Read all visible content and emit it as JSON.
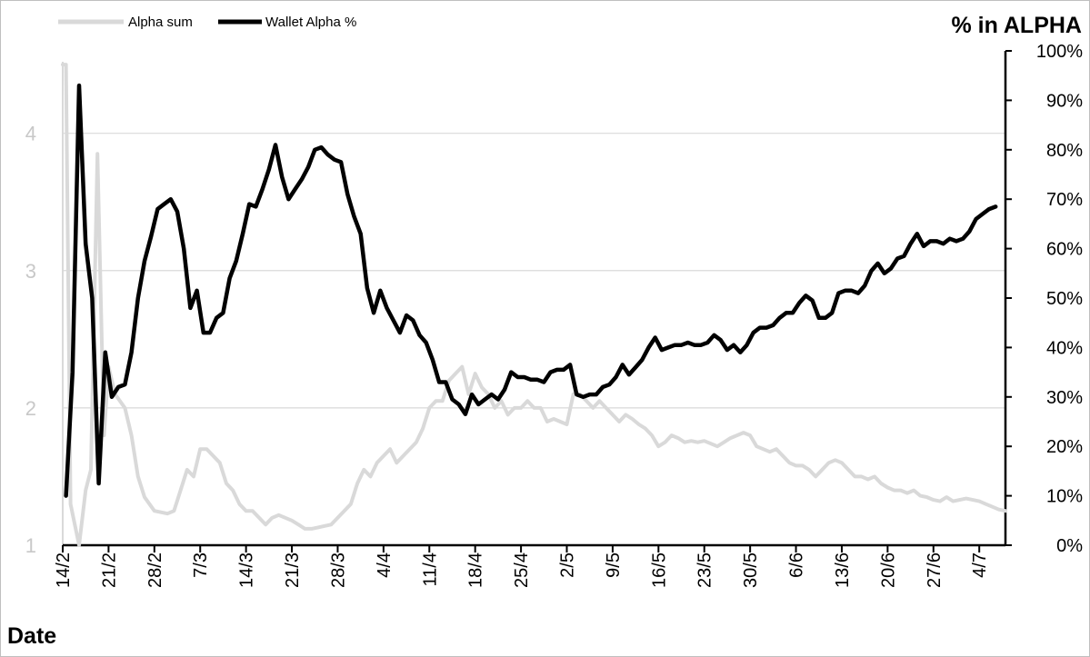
{
  "chart_data": {
    "type": "line",
    "x_axis": {
      "title": "Date",
      "tick_labels": [
        "14/2",
        "21/2",
        "28/2",
        "7/3",
        "14/3",
        "21/3",
        "28/3",
        "4/4",
        "11/4",
        "18/4",
        "25/4",
        "2/5",
        "9/5",
        "16/5",
        "23/5",
        "30/5",
        "6/6",
        "13/6",
        "20/6",
        "27/6",
        "4/7"
      ]
    },
    "y_left": {
      "range": [
        1,
        4.6
      ],
      "ticks": [
        "1",
        "2",
        "3",
        "4"
      ],
      "title": ""
    },
    "y_right": {
      "range": [
        0,
        100
      ],
      "ticks": [
        "0%",
        "10%",
        "20%",
        "30%",
        "40%",
        "50%",
        "60%",
        "70%",
        "80%",
        "90%",
        "100%"
      ],
      "title": "% in ALPHA"
    },
    "grid": "horizontal",
    "legend_position": "top-left",
    "series": [
      {
        "name": "Alpha sum",
        "axis": "left",
        "color": "#d9d9d9",
        "points": [
          [
            0,
            4.5
          ],
          [
            0.5,
            4.5
          ],
          [
            1.2,
            1.3
          ],
          [
            2.5,
            1.0
          ],
          [
            3.5,
            1.4
          ],
          [
            4.3,
            1.55
          ],
          [
            5.3,
            3.85
          ],
          [
            6.3,
            1.8
          ],
          [
            7,
            2.3
          ],
          [
            8,
            2.1
          ],
          [
            9.5,
            2.0
          ],
          [
            10.5,
            1.8
          ],
          [
            11.5,
            1.5
          ],
          [
            12.5,
            1.35
          ],
          [
            14,
            1.25
          ],
          [
            16,
            1.23
          ],
          [
            17,
            1.25
          ],
          [
            18,
            1.4
          ],
          [
            19,
            1.55
          ],
          [
            20,
            1.5
          ],
          [
            21,
            1.7
          ],
          [
            22,
            1.7
          ],
          [
            23,
            1.65
          ],
          [
            24,
            1.6
          ],
          [
            25,
            1.45
          ],
          [
            26,
            1.4
          ],
          [
            27,
            1.3
          ],
          [
            28,
            1.25
          ],
          [
            29,
            1.25
          ],
          [
            30,
            1.2
          ],
          [
            31,
            1.15
          ],
          [
            32,
            1.2
          ],
          [
            33,
            1.22
          ],
          [
            34,
            1.2
          ],
          [
            35,
            1.18
          ],
          [
            36,
            1.15
          ],
          [
            37,
            1.12
          ],
          [
            38,
            1.12
          ],
          [
            39,
            1.13
          ],
          [
            40,
            1.14
          ],
          [
            41,
            1.15
          ],
          [
            42,
            1.2
          ],
          [
            43,
            1.25
          ],
          [
            44,
            1.3
          ],
          [
            45,
            1.45
          ],
          [
            46,
            1.55
          ],
          [
            47,
            1.5
          ],
          [
            48,
            1.6
          ],
          [
            49,
            1.65
          ],
          [
            50,
            1.7
          ],
          [
            51,
            1.6
          ],
          [
            52,
            1.65
          ],
          [
            53,
            1.7
          ],
          [
            54,
            1.75
          ],
          [
            55,
            1.85
          ],
          [
            56,
            2.0
          ],
          [
            57,
            2.05
          ],
          [
            58,
            2.05
          ],
          [
            59,
            2.2
          ],
          [
            60,
            2.25
          ],
          [
            61,
            2.3
          ],
          [
            62,
            2.1
          ],
          [
            63,
            2.25
          ],
          [
            64,
            2.15
          ],
          [
            65,
            2.1
          ],
          [
            66,
            2.0
          ],
          [
            67,
            2.05
          ],
          [
            68,
            1.95
          ],
          [
            69,
            2.0
          ],
          [
            70,
            2.0
          ],
          [
            71,
            2.05
          ],
          [
            72,
            2.0
          ],
          [
            73,
            2.0
          ],
          [
            74,
            1.9
          ],
          [
            75,
            1.92
          ],
          [
            76,
            1.9
          ],
          [
            77,
            1.88
          ],
          [
            78,
            2.1
          ],
          [
            79,
            2.1
          ],
          [
            80,
            2.05
          ],
          [
            81,
            2.0
          ],
          [
            82,
            2.05
          ],
          [
            83,
            2.0
          ],
          [
            84,
            1.95
          ],
          [
            85,
            1.9
          ],
          [
            86,
            1.95
          ],
          [
            87,
            1.92
          ],
          [
            88,
            1.88
          ],
          [
            89,
            1.85
          ],
          [
            90,
            1.8
          ],
          [
            91,
            1.72
          ],
          [
            92,
            1.75
          ],
          [
            93,
            1.8
          ],
          [
            94,
            1.78
          ],
          [
            95,
            1.75
          ],
          [
            96,
            1.76
          ],
          [
            97,
            1.75
          ],
          [
            98,
            1.76
          ],
          [
            99,
            1.74
          ],
          [
            100,
            1.72
          ],
          [
            101,
            1.75
          ],
          [
            102,
            1.78
          ],
          [
            103,
            1.8
          ],
          [
            104,
            1.82
          ],
          [
            105,
            1.8
          ],
          [
            106,
            1.72
          ],
          [
            107,
            1.7
          ],
          [
            108,
            1.68
          ],
          [
            109,
            1.7
          ],
          [
            110,
            1.65
          ],
          [
            111,
            1.6
          ],
          [
            112,
            1.58
          ],
          [
            113,
            1.58
          ],
          [
            114,
            1.55
          ],
          [
            115,
            1.5
          ],
          [
            116,
            1.55
          ],
          [
            117,
            1.6
          ],
          [
            118,
            1.62
          ],
          [
            119,
            1.6
          ],
          [
            120,
            1.55
          ],
          [
            121,
            1.5
          ],
          [
            122,
            1.5
          ],
          [
            123,
            1.48
          ],
          [
            124,
            1.5
          ],
          [
            125,
            1.45
          ],
          [
            126,
            1.42
          ],
          [
            127,
            1.4
          ],
          [
            128,
            1.4
          ],
          [
            129,
            1.38
          ],
          [
            130,
            1.4
          ],
          [
            131,
            1.36
          ],
          [
            132,
            1.35
          ],
          [
            133,
            1.33
          ],
          [
            134,
            1.32
          ],
          [
            135,
            1.35
          ],
          [
            136,
            1.32
          ],
          [
            137,
            1.33
          ],
          [
            138,
            1.34
          ],
          [
            139,
            1.33
          ],
          [
            140,
            1.32
          ],
          [
            141,
            1.3
          ],
          [
            142,
            1.28
          ],
          [
            143,
            1.26
          ],
          [
            144,
            1.25
          ]
        ]
      },
      {
        "name": "Wallet Alpha %",
        "axis": "right",
        "color": "#000000",
        "points": [
          [
            0.5,
            10
          ],
          [
            1.5,
            35
          ],
          [
            2.5,
            93
          ],
          [
            3.5,
            61
          ],
          [
            4.5,
            50
          ],
          [
            5.5,
            12.5
          ],
          [
            6.5,
            39
          ],
          [
            7.5,
            30
          ],
          [
            8.5,
            32
          ],
          [
            9.5,
            32.5
          ],
          [
            10.5,
            39
          ],
          [
            11.5,
            50
          ],
          [
            12.5,
            57.5
          ],
          [
            13.5,
            62.5
          ],
          [
            14.5,
            68
          ],
          [
            15.5,
            69
          ],
          [
            16.5,
            70
          ],
          [
            17.5,
            67.5
          ],
          [
            18.5,
            60
          ],
          [
            19.5,
            48
          ],
          [
            20.5,
            51.5
          ],
          [
            21.5,
            43
          ],
          [
            22.5,
            43
          ],
          [
            23.5,
            46
          ],
          [
            24.5,
            47
          ],
          [
            25.5,
            54
          ],
          [
            26.5,
            57.5
          ],
          [
            27.5,
            63
          ],
          [
            28.5,
            69
          ],
          [
            29.5,
            68.5
          ],
          [
            30.5,
            72
          ],
          [
            31.5,
            76
          ],
          [
            32.5,
            81
          ],
          [
            33.5,
            74.5
          ],
          [
            34.5,
            70
          ],
          [
            35.5,
            72
          ],
          [
            36.5,
            74
          ],
          [
            37.5,
            76.5
          ],
          [
            38.5,
            80
          ],
          [
            39.5,
            80.5
          ],
          [
            40.5,
            79
          ],
          [
            41.5,
            78
          ],
          [
            42.5,
            77.5
          ],
          [
            43.5,
            71
          ],
          [
            44.5,
            66.5
          ],
          [
            45.5,
            63
          ],
          [
            46.5,
            52
          ],
          [
            47.5,
            47
          ],
          [
            48.5,
            51.5
          ],
          [
            49.5,
            48
          ],
          [
            50.5,
            45.5
          ],
          [
            51.5,
            43
          ],
          [
            52.5,
            46.5
          ],
          [
            53.5,
            45.5
          ],
          [
            54.5,
            42.5
          ],
          [
            55.5,
            41
          ],
          [
            56.5,
            37.5
          ],
          [
            57.5,
            33
          ],
          [
            58.5,
            33
          ],
          [
            59.5,
            29.5
          ],
          [
            60.5,
            28.5
          ],
          [
            61.5,
            26.5
          ],
          [
            62.5,
            30.5
          ],
          [
            63.5,
            28.5
          ],
          [
            64.5,
            29.5
          ],
          [
            65.5,
            30.5
          ],
          [
            66.5,
            29.5
          ],
          [
            67.5,
            31.5
          ],
          [
            68.5,
            35
          ],
          [
            69.5,
            34
          ],
          [
            70.5,
            34
          ],
          [
            71.5,
            33.5
          ],
          [
            72.5,
            33.5
          ],
          [
            73.5,
            33
          ],
          [
            74.5,
            35
          ],
          [
            75.5,
            35.5
          ],
          [
            76.5,
            35.5
          ],
          [
            77.5,
            36.5
          ],
          [
            78.5,
            30.5
          ],
          [
            79.5,
            30
          ],
          [
            80.5,
            30.5
          ],
          [
            81.5,
            30.5
          ],
          [
            82.5,
            32
          ],
          [
            83.5,
            32.5
          ],
          [
            84.5,
            34
          ],
          [
            85.5,
            36.5
          ],
          [
            86.5,
            34.5
          ],
          [
            87.5,
            36
          ],
          [
            88.5,
            37.5
          ],
          [
            89.5,
            40
          ],
          [
            90.5,
            42
          ],
          [
            91.5,
            39.5
          ],
          [
            92.5,
            40
          ],
          [
            93.5,
            40.5
          ],
          [
            94.5,
            40.5
          ],
          [
            95.5,
            41
          ],
          [
            96.5,
            40.5
          ],
          [
            97.5,
            40.5
          ],
          [
            98.5,
            41
          ],
          [
            99.5,
            42.5
          ],
          [
            100.5,
            41.5
          ],
          [
            101.5,
            39.5
          ],
          [
            102.5,
            40.5
          ],
          [
            103.5,
            39
          ],
          [
            104.5,
            40.5
          ],
          [
            105.5,
            43
          ],
          [
            106.5,
            44
          ],
          [
            107.5,
            44
          ],
          [
            108.5,
            44.5
          ],
          [
            109.5,
            46
          ],
          [
            110.5,
            47
          ],
          [
            111.5,
            47
          ],
          [
            112.5,
            49
          ],
          [
            113.5,
            50.5
          ],
          [
            114.5,
            49.5
          ],
          [
            115.5,
            46
          ],
          [
            116.5,
            46
          ],
          [
            117.5,
            47
          ],
          [
            118.5,
            51
          ],
          [
            119.5,
            51.5
          ],
          [
            120.5,
            51.5
          ],
          [
            121.5,
            51
          ],
          [
            122.5,
            52.5
          ],
          [
            123.5,
            55.5
          ],
          [
            124.5,
            57
          ],
          [
            125.5,
            55
          ],
          [
            126.5,
            56
          ],
          [
            127.5,
            58
          ],
          [
            128.5,
            58.5
          ],
          [
            129.5,
            61
          ],
          [
            130.5,
            63
          ],
          [
            131.5,
            60.5
          ],
          [
            132.5,
            61.5
          ],
          [
            133.5,
            61.5
          ],
          [
            134.5,
            61
          ],
          [
            135.5,
            62
          ],
          [
            136.5,
            61.5
          ],
          [
            137.5,
            62
          ],
          [
            138.5,
            63.5
          ],
          [
            139.5,
            66
          ],
          [
            140.5,
            67
          ],
          [
            141.5,
            68
          ],
          [
            142.5,
            68.5
          ]
        ]
      }
    ]
  }
}
